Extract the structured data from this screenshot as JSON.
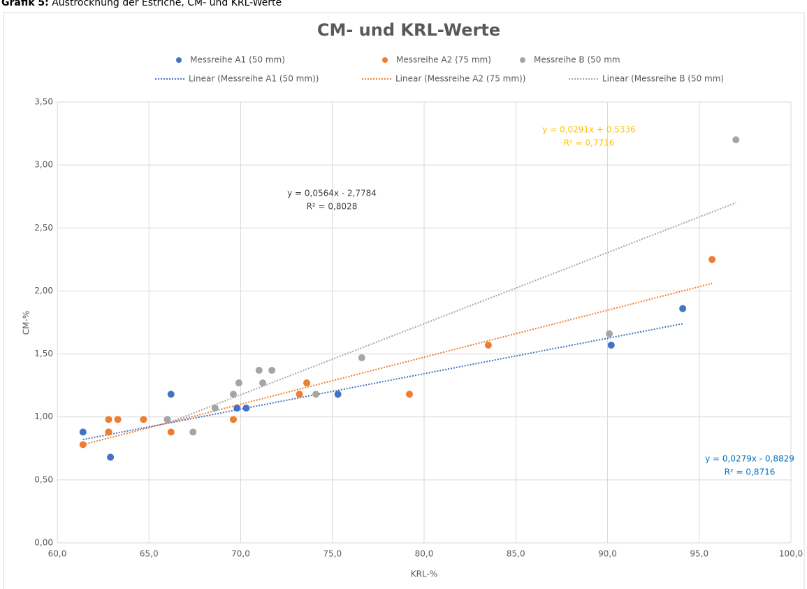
{
  "caption": {
    "label": "Grafik 5:",
    "text": "Austrocknung der Estriche, CM- und KRL-Werte"
  },
  "chart_data": {
    "type": "scatter",
    "title": "CM- und KRL-Werte",
    "x_label": "KRL-%",
    "y_label": "CM-%",
    "xlim": [
      60,
      100
    ],
    "xticks": [
      {
        "value": 60,
        "label": "60,0"
      },
      {
        "value": 65,
        "label": "65,0"
      },
      {
        "value": 70,
        "label": "70,0"
      },
      {
        "value": 75,
        "label": "75,0"
      },
      {
        "value": 80,
        "label": "80,0"
      },
      {
        "value": 85,
        "label": "85,0"
      },
      {
        "value": 90,
        "label": "90,0"
      },
      {
        "value": 95,
        "label": "95,0"
      },
      {
        "value": 100,
        "label": "100,0"
      }
    ],
    "ylim": [
      0,
      3.5
    ],
    "yticks": [
      {
        "value": 0,
        "label": "0,00"
      },
      {
        "value": 0.5,
        "label": "0,50"
      },
      {
        "value": 1,
        "label": "1,00"
      },
      {
        "value": 1.5,
        "label": "1,50"
      },
      {
        "value": 2,
        "label": "2,00"
      },
      {
        "value": 2.5,
        "label": "2,50"
      },
      {
        "value": 3,
        "label": "3,00"
      },
      {
        "value": 3.5,
        "label": "3,50"
      }
    ],
    "grid": true,
    "series": [
      {
        "name": "Messreihe A1 (50 mm)",
        "color": "#4472c4",
        "x": [
          61.4,
          62.8,
          62.9,
          66.2,
          69.8,
          70.3,
          75.3,
          90.2,
          94.1
        ],
        "values": [
          0.88,
          0.88,
          0.68,
          1.18,
          1.07,
          1.07,
          1.18,
          1.57,
          1.86
        ]
      },
      {
        "name": "Messreihe A2 (75 mm)",
        "color": "#ed7d31",
        "x": [
          61.4,
          62.8,
          62.8,
          63.3,
          64.7,
          66.2,
          69.6,
          73.2,
          73.6,
          79.2,
          83.5,
          95.7
        ],
        "values": [
          0.78,
          0.98,
          0.88,
          0.98,
          0.98,
          0.88,
          0.98,
          1.18,
          1.27,
          1.18,
          1.57,
          2.25
        ]
      },
      {
        "name": "Messreihe B (50 mm",
        "color": "#a5a5a5",
        "x": [
          66.0,
          67.4,
          68.6,
          69.6,
          69.9,
          71.0,
          71.2,
          71.7,
          74.1,
          76.6,
          90.1,
          97.0
        ],
        "values": [
          0.98,
          0.88,
          1.07,
          1.18,
          1.27,
          1.37,
          1.27,
          1.37,
          1.18,
          1.47,
          1.66,
          3.2
        ]
      }
    ],
    "trendlines": [
      {
        "name": "Linear (Messreihe A1 (50 mm))",
        "color": "#4472c4",
        "x": [
          61.4,
          94.1
        ],
        "values": [
          0.82,
          1.74
        ]
      },
      {
        "name": "Linear (Messreihe A2 (75 mm))",
        "color": "#ed7d31",
        "x": [
          61.4,
          95.7
        ],
        "values": [
          0.78,
          2.06
        ]
      },
      {
        "name": "Linear (Messreihe B (50 mm)",
        "color": "#a5a5a5",
        "x": [
          66.0,
          97.0
        ],
        "values": [
          0.95,
          2.7
        ]
      }
    ],
    "annotations": [
      {
        "lines": [
          "y = 0,0291x + 0,5336",
          "R² = 0,7716"
        ],
        "color": "#ffc000"
      },
      {
        "lines": [
          "y = 0,0564x - 2,7784",
          "R² = 0,8028"
        ],
        "color": "#404040"
      },
      {
        "lines": [
          "y = 0,0279x - 0,8829",
          "R² = 0,8716"
        ],
        "color": "#0070c0"
      }
    ]
  }
}
